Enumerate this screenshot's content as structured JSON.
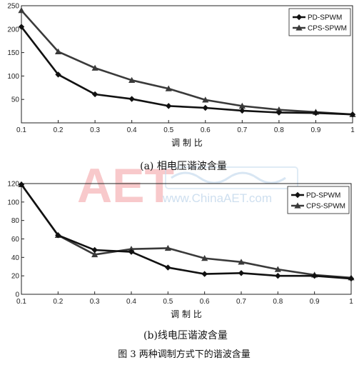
{
  "figure_caption": "图 3   两种调制方式下的谐波含量",
  "watermark": {
    "logo": "AET",
    "url": "www.ChinaAET.com"
  },
  "chart_data": [
    {
      "type": "line",
      "caption": "(a) 相电压谐波含量",
      "xlabel": "调 制 比",
      "ylabel": "",
      "x": [
        0.1,
        0.2,
        0.3,
        0.4,
        0.5,
        0.6,
        0.7,
        0.8,
        0.9,
        1
      ],
      "xlim": [
        0.1,
        1
      ],
      "ylim": [
        0,
        250
      ],
      "yticks": [
        50,
        100,
        150,
        200,
        250
      ],
      "xtick_labels": [
        "0.1",
        "0.2",
        "0.3",
        "0.4",
        "0.5",
        "0.6",
        "0.7",
        "0.8",
        "0.9",
        "1"
      ],
      "grid": false,
      "legend_position": "top-right",
      "series": [
        {
          "name": "PD-SPWM",
          "marker": "diamond",
          "color": "#111111",
          "values": [
            205,
            103,
            61,
            51,
            36,
            32,
            26,
            22,
            21,
            18
          ]
        },
        {
          "name": "CPS-SPWM",
          "marker": "triangle",
          "color": "#3a3a3a",
          "values": [
            240,
            152,
            117,
            91,
            73,
            49,
            36,
            28,
            23,
            18
          ]
        }
      ]
    },
    {
      "type": "line",
      "caption": "(b)线电压谐波含量",
      "xlabel": "调 制 比",
      "ylabel": "",
      "x": [
        0.1,
        0.2,
        0.3,
        0.4,
        0.5,
        0.6,
        0.7,
        0.8,
        0.9,
        1
      ],
      "xlim": [
        0.1,
        1
      ],
      "ylim": [
        0,
        120
      ],
      "yticks": [
        0,
        20,
        40,
        60,
        80,
        100,
        120
      ],
      "xtick_labels": [
        "0.1",
        "0.2",
        "0.3",
        "0.4",
        "0.5",
        "0.6",
        "0.7",
        "0.8",
        "0.9",
        "1"
      ],
      "grid": false,
      "legend_position": "top-right",
      "series": [
        {
          "name": "PD-SPWM",
          "marker": "diamond",
          "color": "#111111",
          "values": [
            119,
            64,
            48,
            46,
            29,
            22,
            23,
            20,
            20,
            17
          ]
        },
        {
          "name": "CPS-SPWM",
          "marker": "triangle",
          "color": "#3a3a3a",
          "values": [
            119,
            64,
            43,
            49,
            50,
            39,
            35,
            27,
            21,
            18
          ]
        }
      ]
    }
  ]
}
